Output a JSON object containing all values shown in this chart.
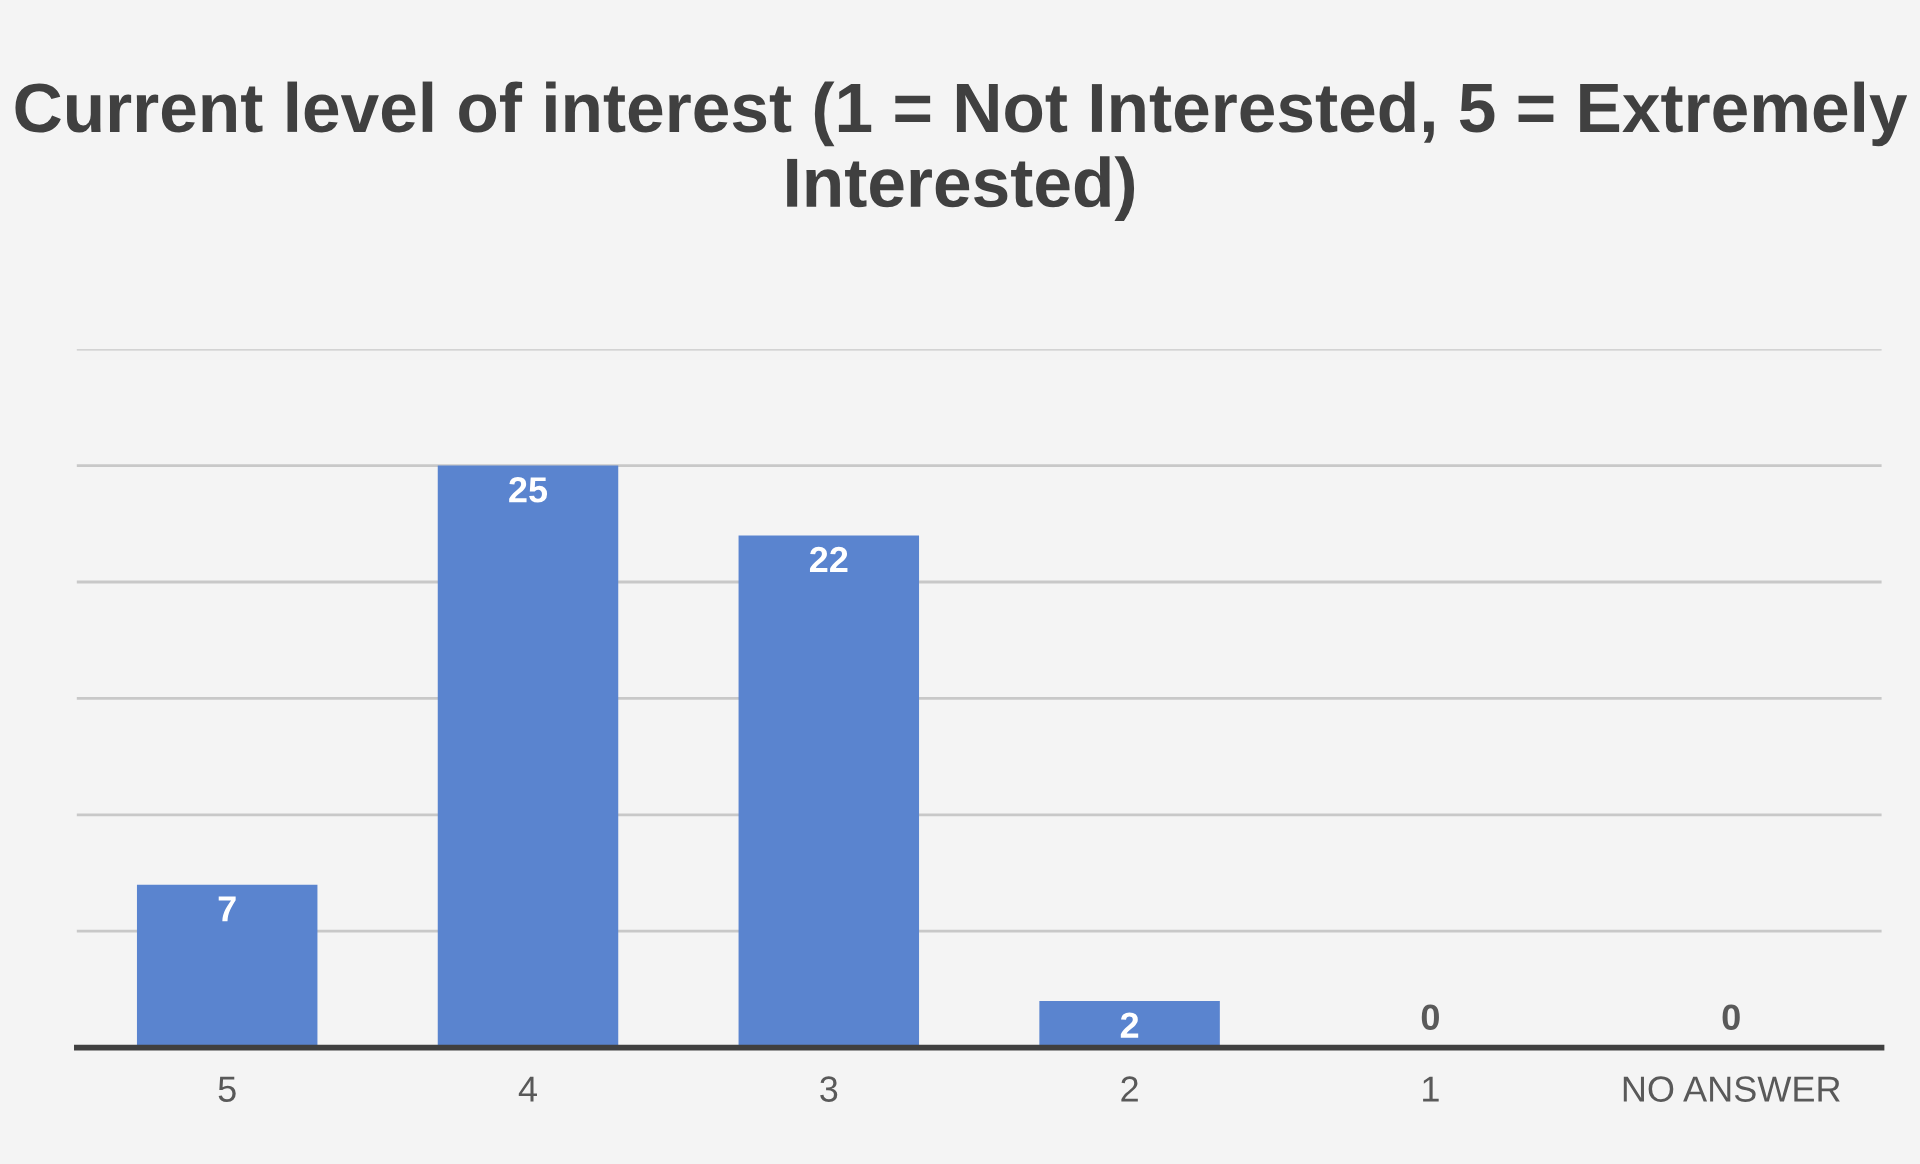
{
  "chart_data": {
    "type": "bar",
    "title": "Current level of interest (1 = Not Interested, 5 = Extremely Interested)",
    "categories": [
      "5",
      "4",
      "3",
      "2",
      "1",
      "NO ANSWER"
    ],
    "values": [
      7,
      25,
      22,
      2,
      0,
      0
    ],
    "color": "#5a84cf",
    "data_labels": true,
    "grid": "y",
    "tick_labels": "x",
    "legend": false,
    "ylim": [
      0,
      30
    ],
    "yticks": [
      {
        "value": 0,
        "label": null
      },
      {
        "value": 5,
        "label": null
      },
      {
        "value": 10,
        "label": null
      },
      {
        "value": 15,
        "label": null
      },
      {
        "value": 20,
        "label": null
      },
      {
        "value": 25,
        "label": null
      },
      {
        "value": 30,
        "label": null
      }
    ]
  }
}
